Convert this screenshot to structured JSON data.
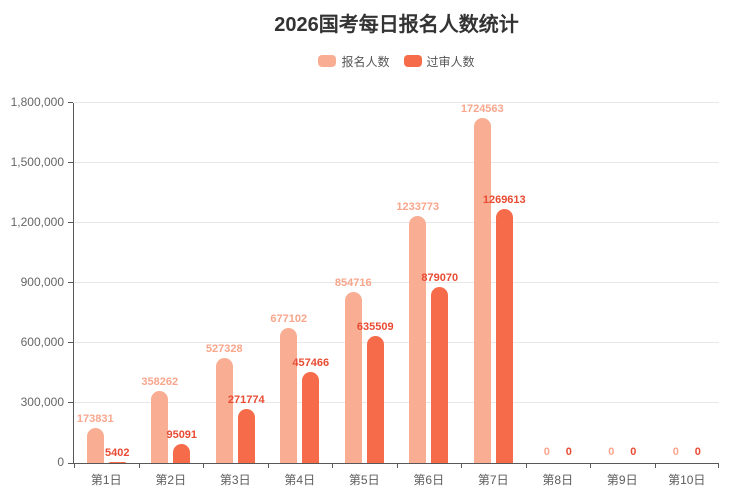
{
  "title": "2026国考每日报名人数统计",
  "colors": {
    "registered_bar": "#F9AE94",
    "registered_label": "#F8A68C",
    "approved_bar": "#F66C4B",
    "approved_label": "#E94B33",
    "grid": "#e8e8e8",
    "axis": "#585858",
    "title_text": "#333333",
    "axis_text": "#666666"
  },
  "chart_data": {
    "type": "bar",
    "title": "2026国考每日报名人数统计",
    "categories": [
      "第1日",
      "第2日",
      "第3日",
      "第4日",
      "第5日",
      "第6日",
      "第7日",
      "第8日",
      "第9日",
      "第10日"
    ],
    "series": [
      {
        "name": "报名人数",
        "color": "#F9AE94",
        "label_color": "#F8A68C",
        "values": [
          173831,
          358262,
          527328,
          677102,
          854716,
          1233773,
          1724563,
          0,
          0,
          0
        ]
      },
      {
        "name": "过审人数",
        "color": "#F66C4B",
        "label_color": "#E94B33",
        "values": [
          5402,
          95091,
          271774,
          457466,
          635509,
          879070,
          1269613,
          0,
          0,
          0
        ]
      }
    ],
    "xlabel": "",
    "ylabel": "",
    "ylim": [
      0,
      1800000
    ],
    "ytick_interval": 300000,
    "ytick_labels": [
      "0",
      "300,000",
      "600,000",
      "900,000",
      "1,200,000",
      "1,500,000",
      "1,800,000"
    ],
    "grid": true,
    "legend_position": "top-center",
    "value_labels": "above-bars"
  }
}
